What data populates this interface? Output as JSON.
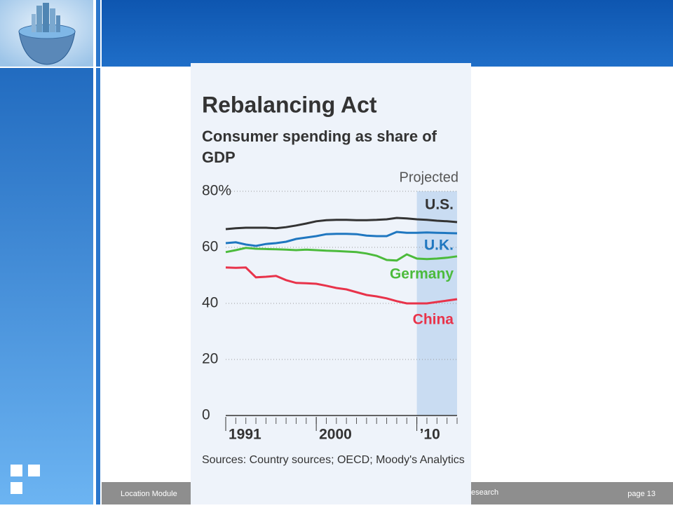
{
  "slide": {
    "footer_left": "Location Module",
    "footer_mid": "esearch",
    "footer_right": "page 13"
  },
  "chart_data": {
    "type": "line",
    "title": "Rebalancing Act",
    "subtitle": "Consumer spending as share of GDP",
    "projection_label": "Projected",
    "projection_start": 2010,
    "source": "Sources: Country sources; OECD; Moody's Analytics",
    "x": [
      1991,
      1992,
      1993,
      1994,
      1995,
      1996,
      1997,
      1998,
      1999,
      2000,
      2001,
      2002,
      2003,
      2004,
      2005,
      2006,
      2007,
      2008,
      2009,
      2010,
      2011,
      2012,
      2013,
      2014
    ],
    "series": [
      {
        "name": "U.S.",
        "color": "#333333",
        "values": [
          66.5,
          66.8,
          67,
          67,
          67,
          66.8,
          67.2,
          67.8,
          68.5,
          69.3,
          69.7,
          69.8,
          69.8,
          69.7,
          69.7,
          69.8,
          70,
          70.5,
          70.3,
          70,
          69.8,
          69.5,
          69.3,
          69
        ]
      },
      {
        "name": "U.K.",
        "color": "#1f77c0",
        "values": [
          61.5,
          61.8,
          61,
          60.5,
          61.2,
          61.5,
          62,
          63,
          63.5,
          64,
          64.7,
          64.8,
          64.8,
          64.7,
          64.2,
          64,
          64,
          65.5,
          65.2,
          65.2,
          65.3,
          65.2,
          65.1,
          65
        ]
      },
      {
        "name": "Germany",
        "color": "#4cbb3c",
        "values": [
          58.3,
          59,
          59.8,
          59.5,
          59.4,
          59.3,
          59.2,
          59,
          59.2,
          59,
          58.8,
          58.7,
          58.5,
          58.3,
          57.8,
          57,
          55.5,
          55.3,
          57.5,
          56,
          55.8,
          56,
          56.3,
          56.8
        ]
      },
      {
        "name": "China",
        "color": "#e8334a",
        "values": [
          52.8,
          52.7,
          52.8,
          49.3,
          49.5,
          49.8,
          48.3,
          47.3,
          47.2,
          47,
          46.3,
          45.5,
          45,
          44,
          43,
          42.5,
          41.8,
          40.8,
          40,
          40,
          40,
          40.5,
          41,
          41.5
        ]
      }
    ],
    "xlim": [
      1991,
      2014
    ],
    "xticks": [
      1991,
      2000,
      {
        "value": 2010,
        "label": "’10"
      }
    ],
    "ylim": [
      0,
      80
    ],
    "yticks": [
      0,
      20,
      40,
      60,
      {
        "value": 80,
        "label": "80%"
      }
    ],
    "grid": true
  }
}
